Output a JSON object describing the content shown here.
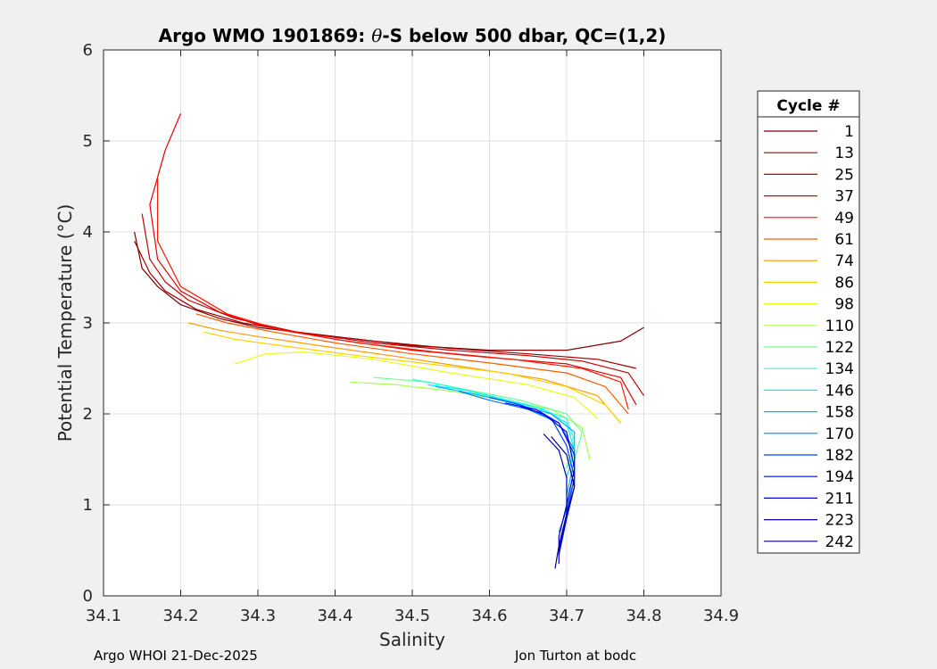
{
  "chart_data": {
    "type": "line",
    "title_prefix": "Argo WMO 1901869: ",
    "title_symbol": "θ",
    "title_suffix": "-S below 500 dbar,  QC=(1,2)",
    "xlabel": "Salinity",
    "ylabel": "Potential Temperature (°C)",
    "xlim": [
      34.1,
      34.9
    ],
    "ylim": [
      0,
      6
    ],
    "xticks": [
      34.1,
      34.2,
      34.3,
      34.4,
      34.5,
      34.6,
      34.7,
      34.8,
      34.9
    ],
    "yticks": [
      0,
      1,
      2,
      3,
      4,
      5,
      6
    ],
    "grid": true,
    "legend_title": "Cycle #",
    "legend_placement": "outside-right",
    "legend": [
      {
        "label": "1",
        "color": "#800000"
      },
      {
        "label": "13",
        "color": "#a00000"
      },
      {
        "label": "25",
        "color": "#c40000"
      },
      {
        "label": "37",
        "color": "#e60000"
      },
      {
        "label": "49",
        "color": "#ff1a00"
      },
      {
        "label": "61",
        "color": "#ff5a00"
      },
      {
        "label": "74",
        "color": "#ff9c00"
      },
      {
        "label": "86",
        "color": "#ffd200"
      },
      {
        "label": "98",
        "color": "#e6ff19"
      },
      {
        "label": "110",
        "color": "#a8ff57"
      },
      {
        "label": "122",
        "color": "#6bff94"
      },
      {
        "label": "134",
        "color": "#2dffd2"
      },
      {
        "label": "146",
        "color": "#00f0ff"
      },
      {
        "label": "158",
        "color": "#00b8ff"
      },
      {
        "label": "170",
        "color": "#0080ff"
      },
      {
        "label": "182",
        "color": "#0044ff"
      },
      {
        "label": "194",
        "color": "#0008ff"
      },
      {
        "label": "211",
        "color": "#0000d8"
      },
      {
        "label": "223",
        "color": "#0000b0"
      },
      {
        "label": "242",
        "color": "#000080"
      }
    ],
    "series": [
      {
        "name": "1",
        "color": "#800000",
        "x": [
          34.14,
          34.15,
          34.17,
          34.2,
          34.25,
          34.3,
          34.4,
          34.5,
          34.6,
          34.7,
          34.77,
          34.8
        ],
        "y": [
          4.0,
          3.6,
          3.4,
          3.2,
          3.05,
          2.95,
          2.85,
          2.75,
          2.7,
          2.7,
          2.8,
          2.95
        ]
      },
      {
        "name": "13",
        "color": "#a00000",
        "x": [
          34.14,
          34.16,
          34.18,
          34.22,
          34.28,
          34.35,
          34.45,
          34.55,
          34.65,
          34.74,
          34.79
        ],
        "y": [
          3.9,
          3.55,
          3.35,
          3.15,
          3.0,
          2.9,
          2.8,
          2.72,
          2.66,
          2.6,
          2.5
        ]
      },
      {
        "name": "25",
        "color": "#c40000",
        "x": [
          34.15,
          34.16,
          34.18,
          34.21,
          34.27,
          34.35,
          34.45,
          34.55,
          34.65,
          34.72,
          34.78,
          34.8
        ],
        "y": [
          4.2,
          3.7,
          3.45,
          3.25,
          3.05,
          2.9,
          2.78,
          2.7,
          2.64,
          2.58,
          2.45,
          2.2
        ]
      },
      {
        "name": "37",
        "color": "#e60000",
        "x": [
          34.2,
          34.18,
          34.16,
          34.17,
          34.2,
          34.25,
          34.3,
          34.4,
          34.5,
          34.6,
          34.7,
          34.77,
          34.79
        ],
        "y": [
          5.3,
          4.9,
          4.3,
          3.7,
          3.35,
          3.12,
          2.98,
          2.82,
          2.7,
          2.62,
          2.55,
          2.4,
          2.1
        ]
      },
      {
        "name": "49",
        "color": "#ff1a00",
        "x": [
          34.17,
          34.17,
          34.2,
          34.26,
          34.33,
          34.43,
          34.53,
          34.63,
          34.72,
          34.77,
          34.78
        ],
        "y": [
          4.6,
          3.9,
          3.4,
          3.1,
          2.92,
          2.78,
          2.68,
          2.6,
          2.5,
          2.35,
          2.05
        ]
      },
      {
        "name": "61",
        "color": "#ff5a00",
        "x": [
          34.22,
          34.26,
          34.32,
          34.4,
          34.5,
          34.6,
          34.7,
          34.75,
          34.78
        ],
        "y": [
          3.1,
          3.0,
          2.9,
          2.78,
          2.66,
          2.56,
          2.45,
          2.3,
          2.0
        ]
      },
      {
        "name": "74",
        "color": "#ff9c00",
        "x": [
          34.21,
          34.25,
          34.3,
          34.38,
          34.48,
          34.58,
          34.67,
          34.74,
          34.77
        ],
        "y": [
          3.0,
          2.92,
          2.85,
          2.75,
          2.63,
          2.5,
          2.38,
          2.2,
          1.9
        ]
      },
      {
        "name": "86",
        "color": "#ffd200",
        "x": [
          34.23,
          34.27,
          34.33,
          34.42,
          34.52,
          34.62,
          34.7,
          34.75,
          34.77
        ],
        "y": [
          2.9,
          2.82,
          2.75,
          2.65,
          2.55,
          2.45,
          2.3,
          2.1,
          1.9
        ]
      },
      {
        "name": "98",
        "color": "#e6ff19",
        "x": [
          34.27,
          34.31,
          34.36,
          34.45,
          34.55,
          34.65,
          34.71,
          34.74
        ],
        "y": [
          2.55,
          2.66,
          2.68,
          2.6,
          2.45,
          2.32,
          2.18,
          1.95
        ]
      },
      {
        "name": "110",
        "color": "#a8ff57",
        "x": [
          34.42,
          34.48,
          34.55,
          34.62,
          34.68,
          34.72,
          34.73
        ],
        "y": [
          2.35,
          2.32,
          2.25,
          2.15,
          2.05,
          1.85,
          1.5
        ]
      },
      {
        "name": "122",
        "color": "#6bff94",
        "x": [
          34.45,
          34.52,
          34.58,
          34.64,
          34.7,
          34.72,
          34.71
        ],
        "y": [
          2.4,
          2.35,
          2.25,
          2.15,
          2.0,
          1.8,
          1.5
        ]
      },
      {
        "name": "134",
        "color": "#2dffd2",
        "x": [
          34.5,
          34.55,
          34.6,
          34.65,
          34.7,
          34.71,
          34.7
        ],
        "y": [
          2.38,
          2.3,
          2.2,
          2.1,
          1.95,
          1.7,
          1.4
        ]
      },
      {
        "name": "146",
        "color": "#00f0ff",
        "x": [
          34.52,
          34.57,
          34.62,
          34.67,
          34.7,
          34.71,
          34.7
        ],
        "y": [
          2.32,
          2.26,
          2.15,
          2.05,
          1.9,
          1.6,
          1.3
        ]
      },
      {
        "name": "158",
        "color": "#00b8ff",
        "x": [
          34.53,
          34.58,
          34.63,
          34.68,
          34.71,
          34.71,
          34.7
        ],
        "y": [
          2.3,
          2.22,
          2.12,
          2.0,
          1.8,
          1.5,
          1.1
        ]
      },
      {
        "name": "170",
        "color": "#0080ff",
        "x": [
          34.56,
          34.6,
          34.65,
          34.69,
          34.71,
          34.71,
          34.7,
          34.69
        ],
        "y": [
          2.25,
          2.15,
          2.05,
          1.9,
          1.6,
          1.3,
          0.95,
          0.7
        ]
      },
      {
        "name": "182",
        "color": "#0044ff",
        "x": [
          34.6,
          34.64,
          34.68,
          34.7,
          34.71,
          34.7,
          34.69
        ],
        "y": [
          2.18,
          2.1,
          1.95,
          1.65,
          1.3,
          0.9,
          0.5
        ]
      },
      {
        "name": "194",
        "color": "#0008ff",
        "x": [
          34.62,
          34.66,
          34.69,
          34.71,
          34.71,
          34.7,
          34.69
        ],
        "y": [
          2.12,
          2.05,
          1.9,
          1.55,
          1.2,
          0.85,
          0.45
        ]
      },
      {
        "name": "211",
        "color": "#0000d8",
        "x": [
          34.64,
          34.67,
          34.7,
          34.71,
          34.7,
          34.69,
          34.69
        ],
        "y": [
          2.08,
          2.0,
          1.8,
          1.4,
          1.0,
          0.65,
          0.35
        ]
      },
      {
        "name": "223",
        "color": "#0000b0",
        "x": [
          34.67,
          34.69,
          34.7,
          34.7,
          34.69
        ],
        "y": [
          1.78,
          1.6,
          1.3,
          0.9,
          0.5
        ]
      },
      {
        "name": "242",
        "color": "#000080",
        "x": [
          34.68,
          34.7,
          34.71,
          34.7,
          34.69,
          34.685
        ],
        "y": [
          1.75,
          1.55,
          1.2,
          0.9,
          0.55,
          0.3
        ]
      }
    ]
  },
  "footer": {
    "left": "Argo WHOI 21-Dec-2025",
    "right": "Jon Turton at bodc"
  }
}
